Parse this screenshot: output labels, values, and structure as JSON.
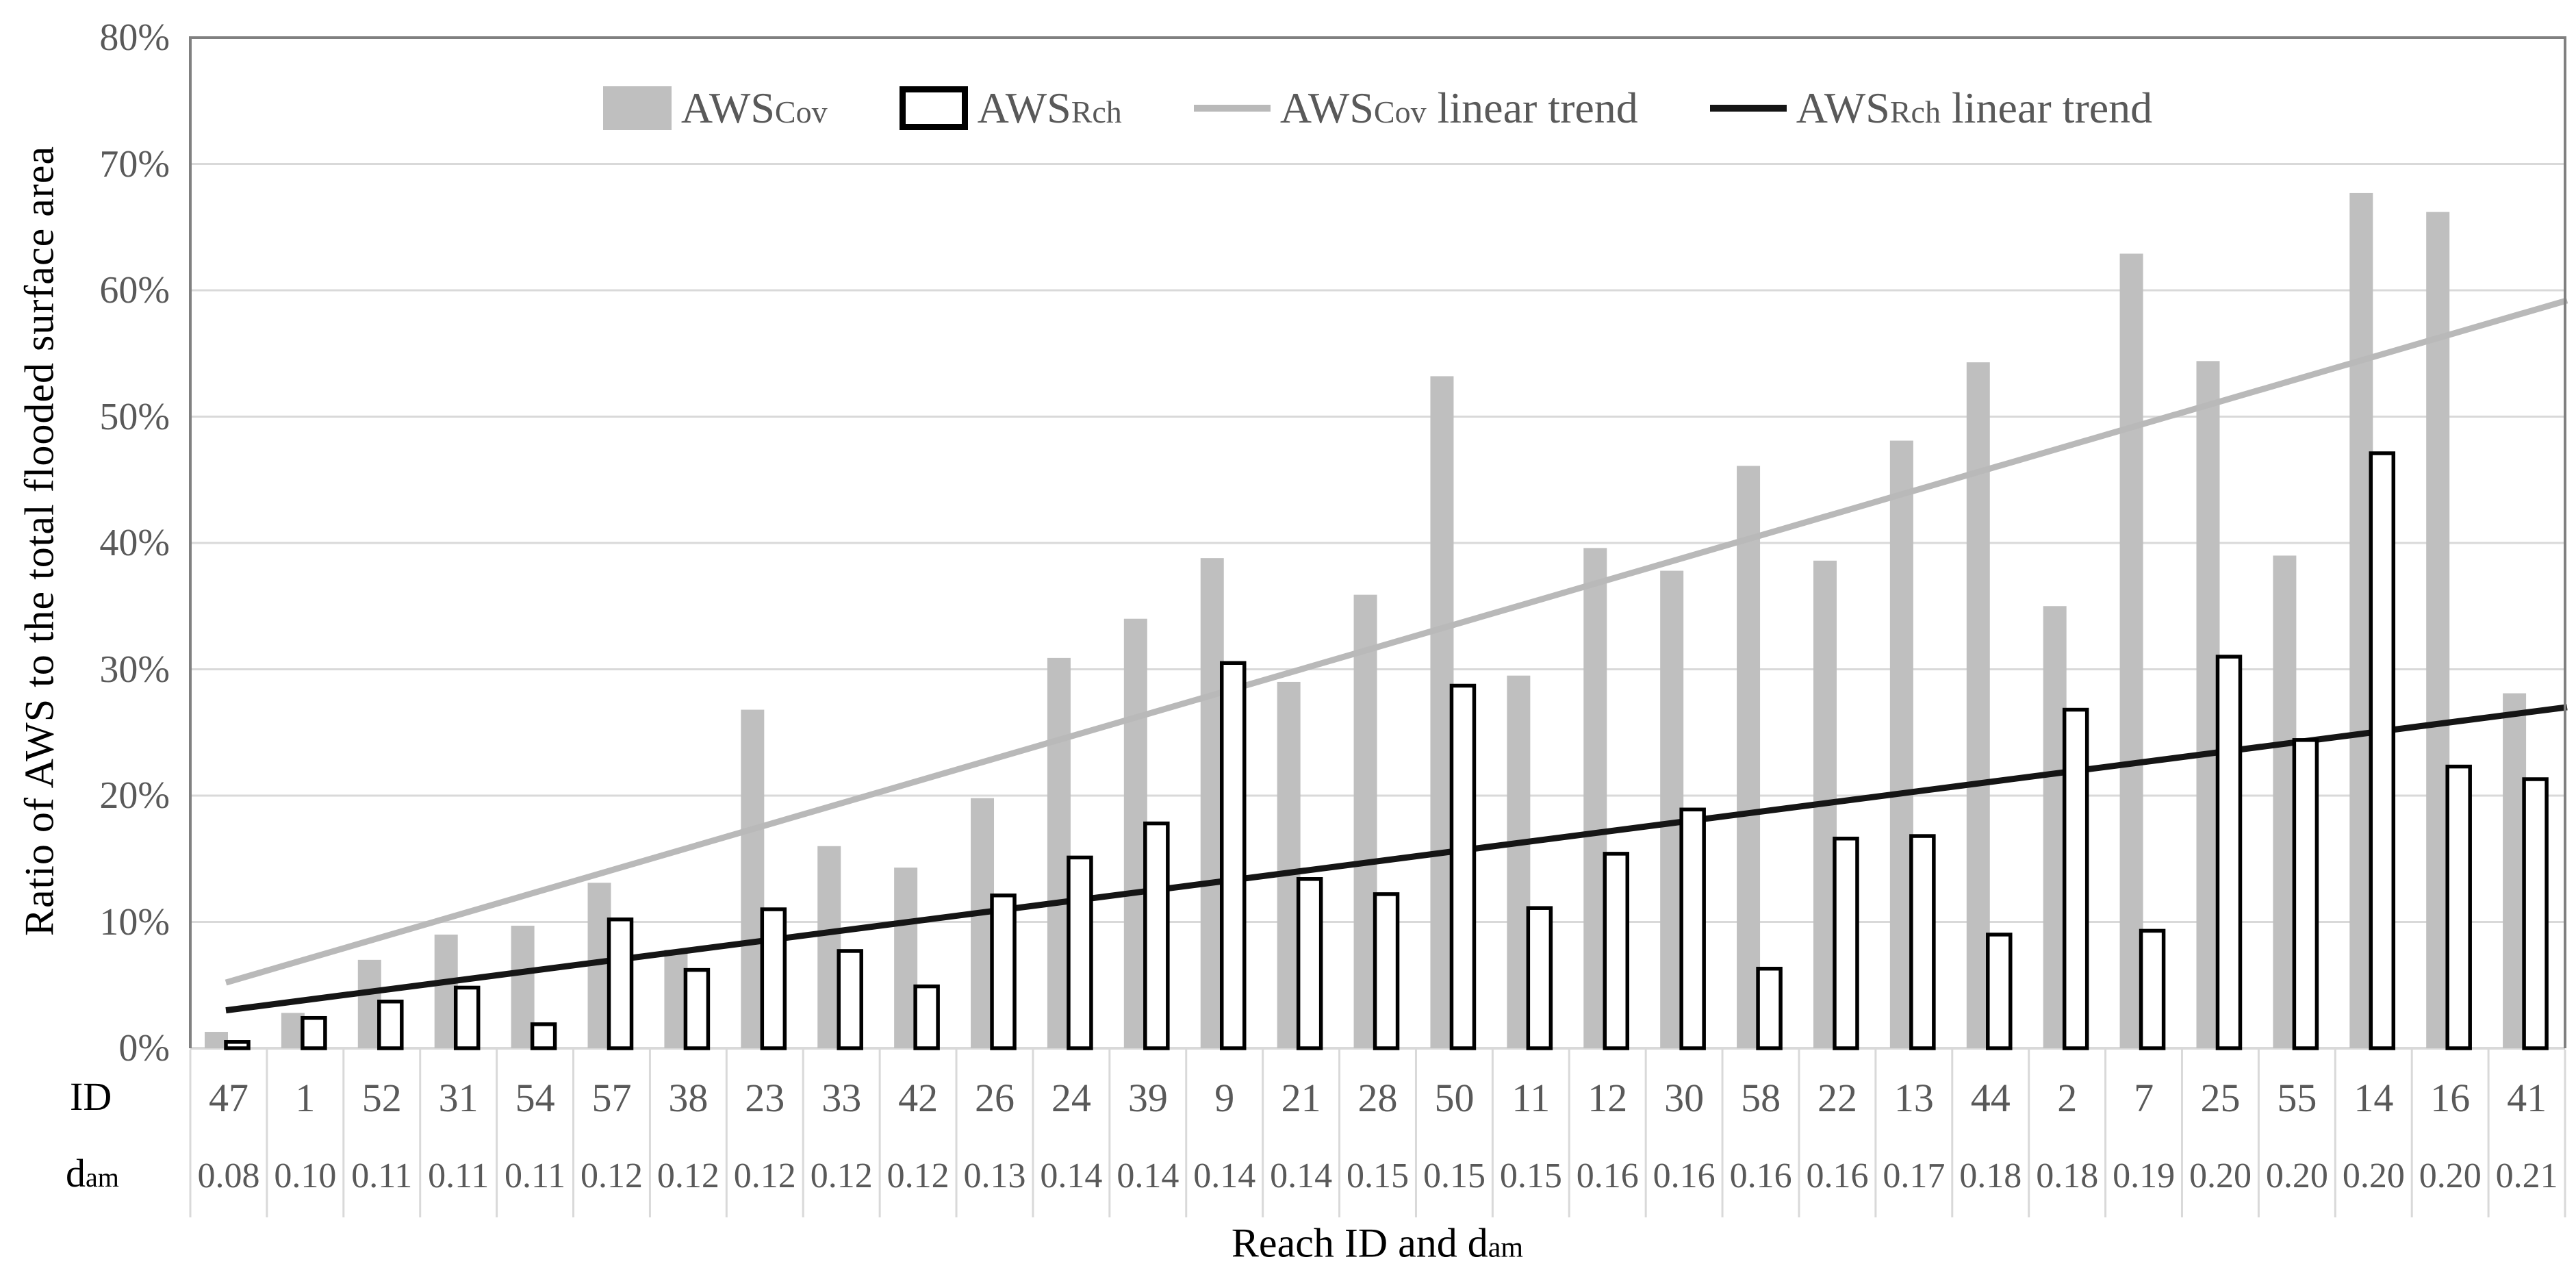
{
  "y_axis": {
    "title": "Ratio of AWS to the total flooded surface area",
    "tick_labels": [
      "0%",
      "10%",
      "20%",
      "30%",
      "40%",
      "50%",
      "60%",
      "70%",
      "80%"
    ]
  },
  "x_axis": {
    "title_main": "Reach ID and d",
    "title_sub": "am",
    "row1_label": "ID",
    "row2_label_main": "d",
    "row2_label_sub": "am"
  },
  "legend": {
    "items": [
      {
        "main": "AWS",
        "sub": "Cov",
        "rest": ""
      },
      {
        "main": "AWS",
        "sub": "Rch",
        "rest": ""
      },
      {
        "main": "AWS",
        "sub": "Cov",
        "rest": " linear trend"
      },
      {
        "main": "AWS",
        "sub": "Rch",
        "rest": " linear trend"
      }
    ]
  },
  "colors": {
    "bar_cov": "#bfbfbf",
    "bar_rch_fill": "#ffffff",
    "bar_rch_stroke": "#000000",
    "trend_cov": "#b9b9b9",
    "trend_rch": "#151515",
    "gridline": "#d9d9d9",
    "baseline": "#d9d9d9",
    "separator": "#d9d9d9",
    "frame": "#808080",
    "axis_text": "#595959",
    "title_text": "#000000"
  },
  "chart_data": {
    "type": "bar",
    "title": "",
    "xlabel": "Reach ID and d_am",
    "ylabel": "Ratio of AWS to the total flooded surface area",
    "ylim": [
      0,
      80
    ],
    "ytick_step": 10,
    "grid": true,
    "legend_position": "top",
    "categories": [
      "47",
      "1",
      "52",
      "31",
      "54",
      "57",
      "38",
      "23",
      "33",
      "42",
      "26",
      "24",
      "39",
      "9",
      "21",
      "28",
      "50",
      "11",
      "12",
      "30",
      "58",
      "22",
      "13",
      "44",
      "2",
      "7",
      "25",
      "55",
      "14",
      "16",
      "41"
    ],
    "dam_values": [
      "0.08",
      "0.10",
      "0.11",
      "0.11",
      "0.11",
      "0.12",
      "0.12",
      "0.12",
      "0.12",
      "0.12",
      "0.13",
      "0.14",
      "0.14",
      "0.14",
      "0.14",
      "0.15",
      "0.15",
      "0.15",
      "0.16",
      "0.16",
      "0.16",
      "0.16",
      "0.17",
      "0.18",
      "0.18",
      "0.19",
      "0.20",
      "0.20",
      "0.20",
      "0.20",
      "0.21"
    ],
    "series": [
      {
        "name": "AWSCov",
        "values": [
          1.3,
          2.8,
          7.0,
          9.0,
          9.7,
          13.1,
          7.8,
          26.8,
          16.0,
          14.3,
          19.8,
          30.9,
          34.0,
          38.8,
          29.0,
          35.9,
          53.2,
          29.5,
          39.6,
          37.8,
          46.1,
          38.6,
          48.1,
          54.3,
          35.0,
          62.9,
          54.4,
          39.0,
          67.7,
          66.2,
          28.1
        ]
      },
      {
        "name": "AWSRch",
        "values": [
          0.5,
          2.4,
          3.7,
          4.8,
          1.9,
          10.2,
          6.2,
          11.0,
          7.7,
          4.9,
          12.1,
          15.1,
          17.8,
          30.5,
          13.4,
          12.2,
          28.7,
          11.1,
          15.4,
          18.9,
          6.3,
          16.6,
          16.8,
          9.0,
          26.8,
          9.3,
          31.0,
          24.4,
          47.1,
          22.3,
          21.3
        ]
      }
    ],
    "trend_lines": [
      {
        "name": "AWSCov linear trend",
        "start_pct": 5.2,
        "end_pct": 59.2
      },
      {
        "name": "AWSRch linear trend",
        "start_pct": 3.0,
        "end_pct": 27.0
      }
    ]
  }
}
